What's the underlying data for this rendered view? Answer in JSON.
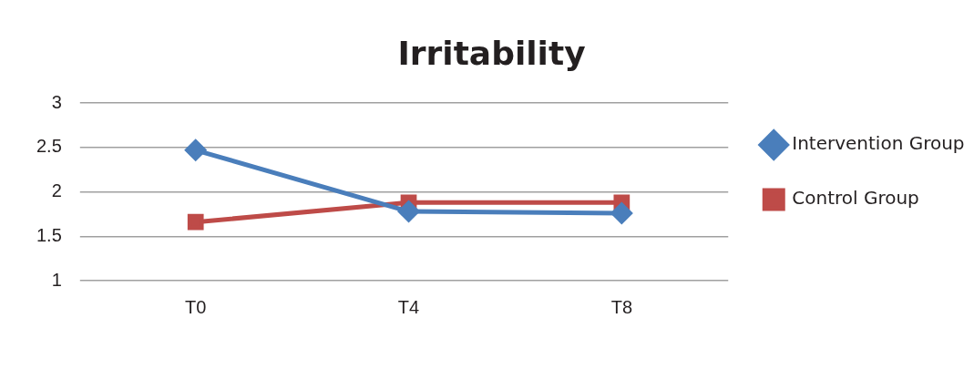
{
  "chart_data": {
    "type": "line",
    "title": "Irritability",
    "categories": [
      "T0",
      "T4",
      "T8"
    ],
    "series": [
      {
        "name": "Intervention Group",
        "color": "#4a7ebb",
        "values": [
          2.47,
          1.78,
          1.76
        ],
        "marker": "diamond"
      },
      {
        "name": "Control Group",
        "color": "#be4b48",
        "values": [
          1.66,
          1.88,
          1.88
        ],
        "marker": "square"
      }
    ],
    "ylim": [
      1,
      3
    ],
    "yticks": [
      1,
      1.5,
      2,
      2.5,
      3
    ],
    "grid": "y",
    "legend": "right",
    "line_style": "solid"
  }
}
